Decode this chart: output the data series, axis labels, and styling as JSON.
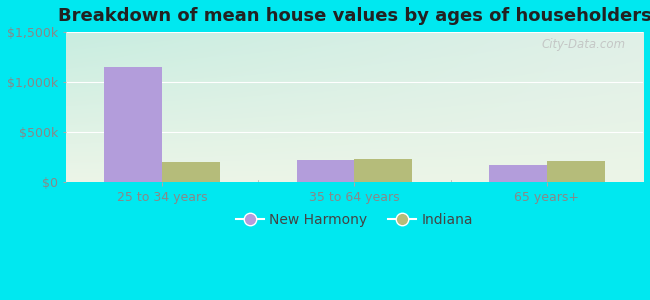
{
  "title": "Breakdown of mean house values by ages of householders",
  "categories": [
    "25 to 34 years",
    "35 to 64 years",
    "65 years+"
  ],
  "new_harmony_values": [
    1150000,
    220000,
    170000
  ],
  "indiana_values": [
    200000,
    235000,
    210000
  ],
  "new_harmony_color": "#b39ddb",
  "indiana_color": "#b5bc7a",
  "background_outer": "#00e8f0",
  "background_inner_top_left": "#c8ede0",
  "background_inner_top_right": "#e0f0e8",
  "background_inner_bottom": "#e8f5e4",
  "ylim": [
    0,
    1500000
  ],
  "yticks": [
    0,
    500000,
    1000000,
    1500000
  ],
  "ytick_labels": [
    "$0",
    "$500k",
    "$1,000k",
    "$1,500k"
  ],
  "bar_width": 0.3,
  "legend_labels": [
    "New Harmony",
    "Indiana"
  ],
  "watermark": "City-Data.com",
  "title_fontsize": 13,
  "tick_fontsize": 9,
  "legend_fontsize": 10,
  "grid_color": "#ccddcc",
  "tick_color": "#888888"
}
